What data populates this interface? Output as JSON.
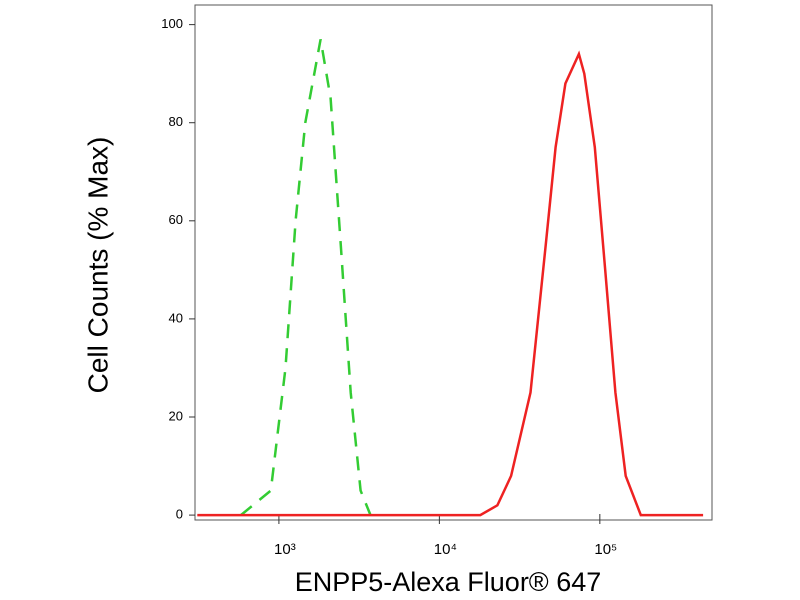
{
  "chart_data": {
    "type": "line",
    "x_label": "ENPP5-Alexa Fluor® 647",
    "y_label": "Cell Counts (% Max)",
    "log_x": true,
    "xlim": [
      300,
      500000
    ],
    "xticks": [
      {
        "value": 1000,
        "label": "10³"
      },
      {
        "value": 10000,
        "label": "10⁴"
      },
      {
        "value": 100000,
        "label": "10⁵"
      }
    ],
    "ylim": [
      -1,
      104
    ],
    "yticks": [
      0,
      20,
      40,
      60,
      80,
      100
    ],
    "series": [
      {
        "color": "#33cc33",
        "dashed": true,
        "x": [
          580,
          890,
          1100,
          1270,
          1460,
          1820,
          2100,
          2430,
          2800,
          3230,
          3720
        ],
        "values": [
          0,
          5,
          30,
          60,
          80,
          97,
          85,
          55,
          25,
          5,
          0
        ]
      },
      {
        "color": "#ee2222",
        "dashed": false,
        "x": [
          310,
          18000,
          23000,
          28000,
          37000,
          46000,
          53000,
          61000,
          74000,
          80000,
          93000,
          108000,
          125000,
          145000,
          180000,
          440000
        ],
        "values": [
          0,
          0,
          2,
          8,
          25,
          55,
          75,
          88,
          94,
          90,
          75,
          50,
          25,
          8,
          0,
          0
        ]
      }
    ]
  }
}
